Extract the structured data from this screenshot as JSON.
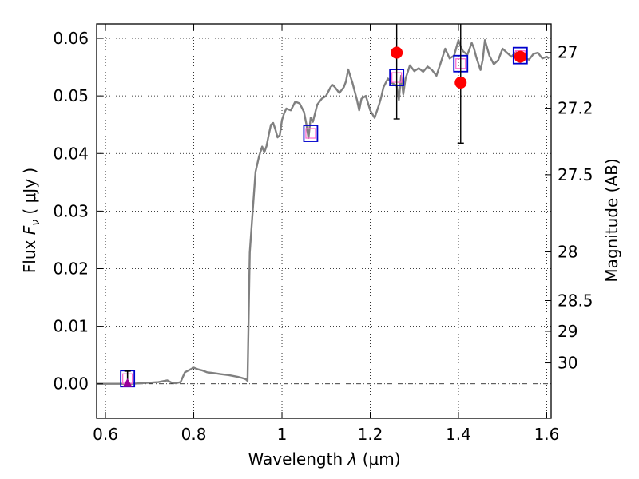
{
  "chart_data": {
    "type": "line",
    "title": "",
    "xlabel": "Wavelength",
    "xlabel_symbol": "λ",
    "xlabel_unit": "(μm)",
    "ylabel": "Flux",
    "ylabel_symbol": "F",
    "ylabel_subscript": "ν",
    "ylabel_unit": "( μJy )",
    "y2label": "Magnitude (AB)",
    "xlim": [
      0.58,
      1.61
    ],
    "ylim": [
      -0.006,
      0.0625
    ],
    "grid": true,
    "x_ticks": [
      0.6,
      0.8,
      1.0,
      1.2,
      1.4,
      1.6
    ],
    "x_tick_labels": [
      "0.6",
      "0.8",
      "1",
      "1.2",
      "1.4",
      "1.6"
    ],
    "y_ticks": [
      0.0,
      0.01,
      0.02,
      0.03,
      0.04,
      0.05,
      0.06
    ],
    "y_tick_labels": [
      "0.00",
      "0.01",
      "0.02",
      "0.03",
      "0.04",
      "0.05",
      "0.06"
    ],
    "y2_ticks": [
      27,
      27.2,
      27.5,
      28,
      28.5,
      29,
      30
    ],
    "y2_tick_labels": [
      "27",
      "27.2",
      "27.5",
      "28",
      "28.5",
      "29",
      "30"
    ],
    "colors": {
      "model": "#808080",
      "model_squares": "#0000cc",
      "observed": "#ff0000",
      "upper_limit": "#990099",
      "errorbar": "#000000"
    },
    "series": [
      {
        "style": "line",
        "x": [
          0.58,
          0.62,
          0.66,
          0.7,
          0.72,
          0.74,
          0.75,
          0.76,
          0.77,
          0.78,
          0.79,
          0.8,
          0.81,
          0.82,
          0.83,
          0.84,
          0.85,
          0.86,
          0.88,
          0.9,
          0.91,
          0.918,
          0.922,
          0.927,
          0.932,
          0.94,
          0.948,
          0.955,
          0.96,
          0.965,
          0.97,
          0.975,
          0.98,
          0.985,
          0.99,
          0.995,
          1.0,
          1.005,
          1.01,
          1.02,
          1.03,
          1.04,
          1.05,
          1.055,
          1.06,
          1.065,
          1.07,
          1.08,
          1.09,
          1.1,
          1.11,
          1.115,
          1.12,
          1.13,
          1.14,
          1.145,
          1.15,
          1.16,
          1.17,
          1.175,
          1.18,
          1.19,
          1.2,
          1.21,
          1.22,
          1.225,
          1.23,
          1.24,
          1.25,
          1.26,
          1.265,
          1.27,
          1.275,
          1.28,
          1.29,
          1.3,
          1.31,
          1.32,
          1.33,
          1.34,
          1.35,
          1.36,
          1.37,
          1.38,
          1.39,
          1.4,
          1.405,
          1.41,
          1.42,
          1.43,
          1.435,
          1.44,
          1.45,
          1.455,
          1.46,
          1.47,
          1.48,
          1.49,
          1.5,
          1.51,
          1.52,
          1.53,
          1.54,
          1.545,
          1.55,
          1.56,
          1.57,
          1.58,
          1.59,
          1.6,
          1.605
        ],
        "y": [
          0.0,
          0.0,
          0.0,
          0.0002,
          0.0003,
          0.0006,
          0.0002,
          0.0001,
          0.0003,
          0.002,
          0.0024,
          0.0028,
          0.0025,
          0.0023,
          0.002,
          0.0019,
          0.0018,
          0.0017,
          0.0015,
          0.0012,
          0.001,
          0.0008,
          0.0005,
          0.0228,
          0.0283,
          0.0368,
          0.0395,
          0.0412,
          0.0402,
          0.0413,
          0.0432,
          0.045,
          0.0453,
          0.0442,
          0.0428,
          0.0432,
          0.0458,
          0.047,
          0.0478,
          0.0475,
          0.049,
          0.0487,
          0.0472,
          0.0452,
          0.0427,
          0.0462,
          0.0455,
          0.0485,
          0.0495,
          0.05,
          0.0515,
          0.0519,
          0.0515,
          0.0505,
          0.0515,
          0.0525,
          0.0546,
          0.0522,
          0.0493,
          0.0475,
          0.0495,
          0.05,
          0.0475,
          0.0462,
          0.0485,
          0.0498,
          0.0515,
          0.053,
          0.0522,
          0.0518,
          0.0493,
          0.0535,
          0.0503,
          0.053,
          0.0553,
          0.0543,
          0.0548,
          0.0542,
          0.0551,
          0.0545,
          0.0535,
          0.0558,
          0.0582,
          0.0565,
          0.057,
          0.0597,
          0.0586,
          0.0578,
          0.0571,
          0.0592,
          0.0583,
          0.0568,
          0.0545,
          0.0563,
          0.0597,
          0.057,
          0.0555,
          0.0562,
          0.0582,
          0.0575,
          0.0568,
          0.0576,
          0.0559,
          0.0572,
          0.0565,
          0.0563,
          0.0573,
          0.0575,
          0.0565,
          0.0568,
          0.0565
        ]
      },
      {
        "style": "square",
        "x": [
          0.65,
          1.065,
          1.26,
          1.405,
          1.54
        ],
        "y": [
          0.0009,
          0.0435,
          0.0532,
          0.0556,
          0.057
        ]
      },
      {
        "style": "circle",
        "x": [
          1.26,
          1.405,
          1.54
        ],
        "y": [
          0.0575,
          0.0523,
          0.0568
        ],
        "yerr_low": [
          0.046,
          0.0418,
          0.0568
        ],
        "yerr_high": [
          0.0625,
          0.0625,
          0.0568
        ]
      },
      {
        "style": "upper-limit",
        "x": [
          0.65
        ],
        "y": [
          0.0
        ],
        "yerr_low": [
          0.0
        ],
        "yerr_high": [
          0.0022
        ]
      }
    ]
  }
}
